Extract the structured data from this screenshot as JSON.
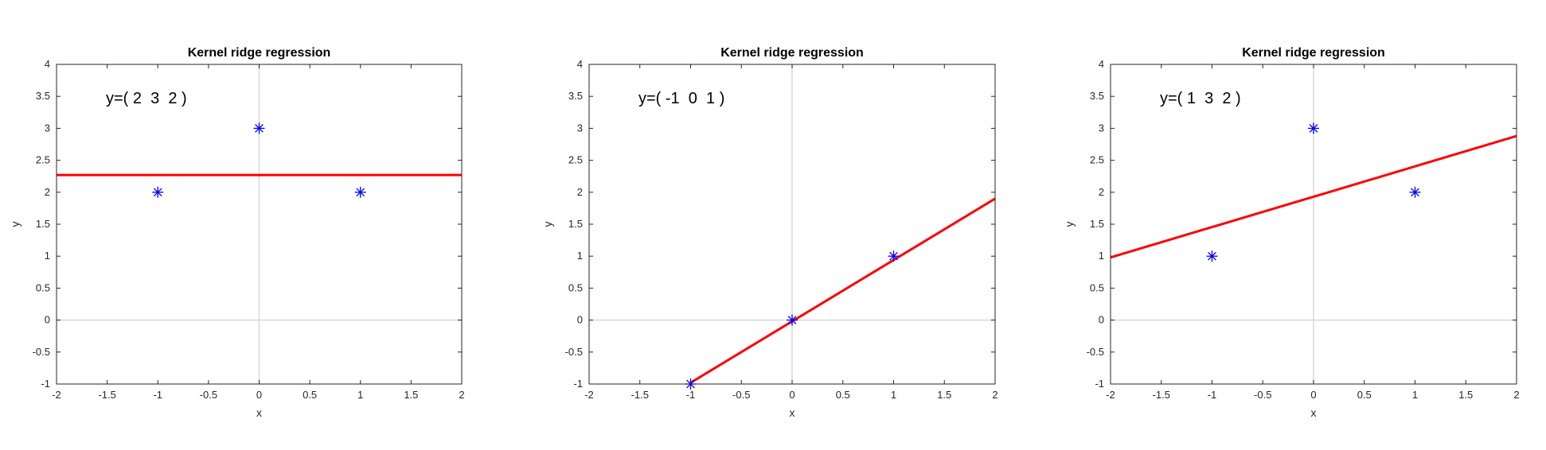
{
  "chart_data": [
    {
      "type": "scatter",
      "title": "Kernel ridge regression",
      "xlabel": "x",
      "ylabel": "y",
      "xlim": [
        -2,
        2
      ],
      "ylim": [
        -1,
        4
      ],
      "xticks": [
        "-2",
        "-1.5",
        "-1",
        "-0.5",
        "0",
        "0.5",
        "1",
        "1.5",
        "2"
      ],
      "yticks": [
        "-1",
        "-0.5",
        "0",
        "0.5",
        "1",
        "1.5",
        "2",
        "2.5",
        "3",
        "3.5",
        "4"
      ],
      "annotation": "y=( 2  3  2 )",
      "points": {
        "x": [
          -1,
          0,
          1
        ],
        "y": [
          2,
          3,
          2
        ],
        "color": "#0000ff",
        "marker": "asterisk"
      },
      "fit_line": {
        "x": [
          -2,
          2
        ],
        "y": [
          2.27,
          2.27
        ],
        "color": "#ff0000"
      },
      "zero_lines_color": "#d9d9d9"
    },
    {
      "type": "scatter",
      "title": "Kernel ridge regression",
      "xlabel": "x",
      "ylabel": "y",
      "xlim": [
        -2,
        2
      ],
      "ylim": [
        -1,
        4
      ],
      "xticks": [
        "-2",
        "-1.5",
        "-1",
        "-0.5",
        "0",
        "0.5",
        "1",
        "1.5",
        "2"
      ],
      "yticks": [
        "-1",
        "-0.5",
        "0",
        "0.5",
        "1",
        "1.5",
        "2",
        "2.5",
        "3",
        "3.5",
        "4"
      ],
      "annotation": "y=( -1  0  1 )",
      "points": {
        "x": [
          -1,
          0,
          1
        ],
        "y": [
          -1,
          0,
          1
        ],
        "color": "#0000ff",
        "marker": "asterisk"
      },
      "fit_line": {
        "x": [
          -1,
          2
        ],
        "y": [
          -0.98,
          1.9
        ],
        "color": "#ff0000"
      },
      "zero_lines_color": "#d9d9d9"
    },
    {
      "type": "scatter",
      "title": "Kernel ridge regression",
      "xlabel": "x",
      "ylabel": "y",
      "xlim": [
        -2,
        2
      ],
      "ylim": [
        -1,
        4
      ],
      "xticks": [
        "-2",
        "-1.5",
        "-1",
        "-0.5",
        "0",
        "0.5",
        "1",
        "1.5",
        "2"
      ],
      "yticks": [
        "-1",
        "-0.5",
        "0",
        "0.5",
        "1",
        "1.5",
        "2",
        "2.5",
        "3",
        "3.5",
        "4"
      ],
      "annotation": "y=( 1  3  2 )",
      "points": {
        "x": [
          -1,
          0,
          1
        ],
        "y": [
          1,
          3,
          2
        ],
        "color": "#0000ff",
        "marker": "asterisk"
      },
      "fit_line": {
        "x": [
          -2,
          2
        ],
        "y": [
          0.98,
          2.88
        ],
        "color": "#ff0000"
      },
      "zero_lines_color": "#d9d9d9"
    }
  ]
}
